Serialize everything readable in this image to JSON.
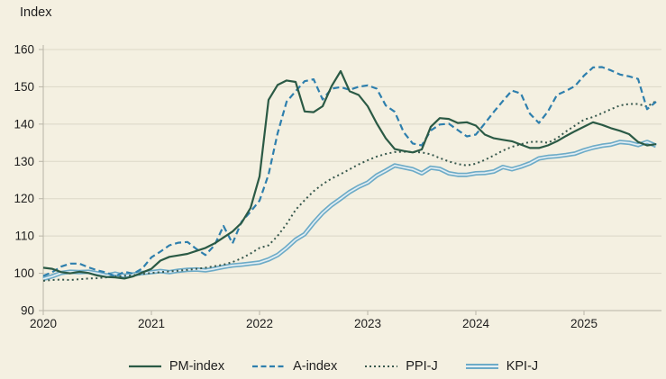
{
  "page": {
    "background_color": "#f4f0e1"
  },
  "chart_data": {
    "type": "line",
    "title": "",
    "ylabel": "Index",
    "xlabel": "",
    "frequency": "monthly",
    "x_start": "2020-01",
    "x_end": "2025-09",
    "x_tick_labels": [
      "2020",
      "2021",
      "2022",
      "2023",
      "2024",
      "2025"
    ],
    "y_ticks": [
      160,
      150,
      140,
      130,
      120,
      110,
      100,
      90
    ],
    "ylim": [
      90,
      160
    ],
    "grid": true,
    "legend_position": "bottom",
    "colors": {
      "background": "#f4f0e1",
      "gridline": "#dbd7c7",
      "axis": "#b9b5a7",
      "text": "#1e1e1e"
    },
    "series": [
      {
        "name": "PM-index",
        "style": "solid",
        "color": "#2b5a45",
        "z": 4,
        "values": [
          101.5,
          101.2,
          100.3,
          100.0,
          100.4,
          100.1,
          99.4,
          99.0,
          98.9,
          98.6,
          99.2,
          100.2,
          101.2,
          103.4,
          104.4,
          104.8,
          105.2,
          106.0,
          106.8,
          108.0,
          109.6,
          111.2,
          113.5,
          117.5,
          126.0,
          146.5,
          150.5,
          151.7,
          151.3,
          143.4,
          143.2,
          144.8,
          150.2,
          154.2,
          148.8,
          147.8,
          144.8,
          140.2,
          136.2,
          133.3,
          132.8,
          132.4,
          133.2,
          139.3,
          141.6,
          141.4,
          140.3,
          140.5,
          139.6,
          137.2,
          136.2,
          135.8,
          135.4,
          134.5,
          133.6,
          133.6,
          134.3,
          135.4,
          136.8,
          138.1,
          139.3,
          140.5,
          139.8,
          138.9,
          138.2,
          137.3,
          135.2,
          134.3,
          134.6
        ]
      },
      {
        "name": "A-index",
        "style": "dashed",
        "color": "#2e7fad",
        "z": 3,
        "values": [
          99.3,
          100.3,
          101.8,
          102.6,
          102.6,
          101.6,
          100.8,
          100.2,
          99.2,
          100.4,
          99.9,
          101.3,
          104.3,
          105.8,
          107.5,
          108.2,
          108.4,
          106.5,
          104.9,
          107.5,
          112.7,
          108.0,
          113.8,
          116.5,
          119.5,
          126.5,
          137.5,
          146.0,
          148.8,
          151.5,
          152.0,
          146.6,
          149.5,
          149.9,
          149.2,
          150.0,
          150.4,
          149.5,
          145.0,
          143.3,
          137.8,
          134.8,
          134.3,
          138.3,
          139.9,
          140.1,
          138.4,
          136.7,
          137.2,
          140.2,
          143.3,
          146.2,
          149.0,
          148.2,
          142.8,
          140.3,
          143.4,
          147.8,
          148.9,
          150.2,
          153.0,
          155.2,
          155.3,
          154.4,
          153.3,
          152.8,
          152.1,
          144.0,
          146.0
        ]
      },
      {
        "name": "PPI-J",
        "style": "dotted",
        "color": "#37584d",
        "z": 2,
        "values": [
          98.0,
          98.2,
          98.3,
          98.2,
          98.4,
          98.6,
          98.7,
          98.9,
          99.1,
          99.3,
          99.5,
          99.8,
          100.1,
          100.3,
          100.5,
          100.7,
          100.9,
          101.2,
          101.5,
          101.9,
          102.3,
          103.0,
          104.0,
          105.3,
          106.8,
          107.5,
          110.0,
          113.2,
          117.0,
          119.6,
          122.0,
          123.9,
          125.4,
          126.6,
          127.9,
          129.2,
          130.3,
          131.3,
          132.0,
          132.5,
          132.6,
          132.5,
          132.4,
          131.9,
          130.9,
          130.0,
          129.3,
          128.9,
          129.4,
          130.4,
          131.6,
          132.9,
          133.9,
          134.6,
          135.2,
          135.3,
          135.0,
          136.2,
          138.0,
          139.6,
          141.2,
          141.9,
          142.9,
          144.0,
          145.0,
          145.4,
          145.4,
          144.7,
          146.2
        ]
      },
      {
        "name": "KPI-J",
        "style": "thick-double",
        "color": "#6dabc7",
        "inner_color": "#e3eef3",
        "z": 1,
        "values": [
          98.5,
          99.2,
          100.1,
          100.4,
          100.3,
          100.4,
          100.0,
          99.4,
          99.9,
          99.3,
          99.7,
          100.1,
          100.3,
          100.6,
          100.3,
          100.7,
          100.9,
          101.0,
          100.8,
          101.2,
          101.7,
          102.1,
          102.3,
          102.6,
          102.9,
          103.7,
          104.9,
          106.8,
          109.0,
          110.5,
          113.5,
          116.2,
          118.3,
          120.0,
          121.8,
          123.2,
          124.3,
          126.2,
          127.5,
          128.9,
          128.4,
          127.9,
          126.8,
          128.3,
          128.0,
          126.8,
          126.4,
          126.4,
          126.8,
          126.9,
          127.3,
          128.5,
          127.9,
          128.6,
          129.5,
          130.8,
          131.2,
          131.4,
          131.7,
          132.1,
          133.0,
          133.7,
          134.2,
          134.5,
          135.2,
          135.0,
          134.4,
          135.2,
          134.2
        ]
      }
    ]
  }
}
